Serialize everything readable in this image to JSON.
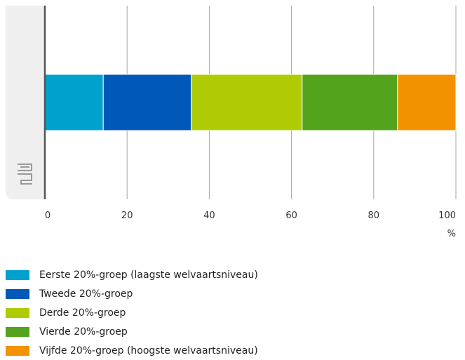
{
  "chart_data": {
    "type": "bar",
    "orientation": "horizontal",
    "stacked": true,
    "categories": [
      ""
    ],
    "series": [
      {
        "name": "Eerste 20%-groep (laagste welvaartsniveau)",
        "values": [
          14.2
        ],
        "color": "#00a1cd"
      },
      {
        "name": "Tweede 20%-groep",
        "values": [
          21.4
        ],
        "color": "#0058b8"
      },
      {
        "name": "Derde 20%-groep",
        "values": [
          27.0
        ],
        "color": "#afcb05"
      },
      {
        "name": "Vierde 20%-groep",
        "values": [
          23.2
        ],
        "color": "#53a31d"
      },
      {
        "name": "Vijfde 20%-groep (hoogste welvaartsniveau)",
        "values": [
          14.2
        ],
        "color": "#f39200"
      }
    ],
    "xlim": [
      0,
      100
    ],
    "xticks": [
      "0",
      "20",
      "40",
      "60",
      "80",
      "100"
    ],
    "xunit": "%",
    "grid": true,
    "legend_position": "bottom-left",
    "logo": "cbs-logo"
  }
}
